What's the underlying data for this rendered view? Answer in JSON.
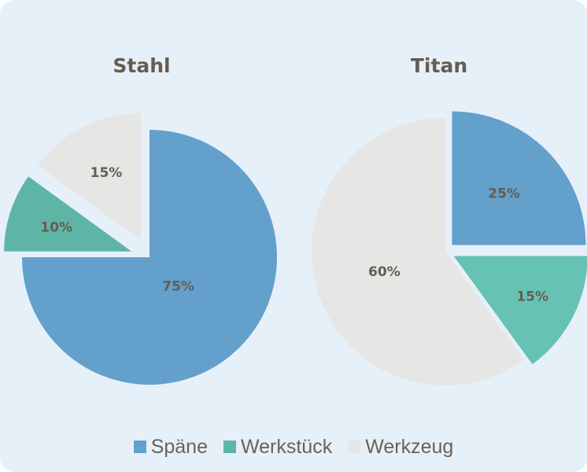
{
  "colors": {
    "spaene": "#63a0cc",
    "werkstueck": "#5fb5a5",
    "werkzeug": "#e6e6e4"
  },
  "legend": [
    {
      "label": "Späne",
      "color": "#63a0cc"
    },
    {
      "label": "Werkstück",
      "color": "#5fb5a5"
    },
    {
      "label": "Werkzeug",
      "color": "#e6e6e4"
    }
  ],
  "chart_data": [
    {
      "type": "pie",
      "title": "Stahl",
      "slices": [
        {
          "label": "Späne",
          "value": 75,
          "display": "75%",
          "color": "#63a0cc",
          "exploded": false
        },
        {
          "label": "Werkstück",
          "value": 10,
          "display": "10%",
          "color": "#5fb5a5",
          "exploded": true
        },
        {
          "label": "Werkzeug",
          "value": 15,
          "display": "15%",
          "color": "#e6e6e4",
          "exploded": true
        }
      ]
    },
    {
      "type": "pie",
      "title": "Titan",
      "slices": [
        {
          "label": "Späne",
          "value": 25,
          "display": "25%",
          "color": "#63a0cc",
          "exploded": true
        },
        {
          "label": "Werkstück",
          "value": 15,
          "display": "15%",
          "color": "#66c2b3",
          "exploded": true
        },
        {
          "label": "Werkzeug",
          "value": 60,
          "display": "60%",
          "color": "#e6e6e4",
          "exploded": false
        }
      ]
    }
  ]
}
